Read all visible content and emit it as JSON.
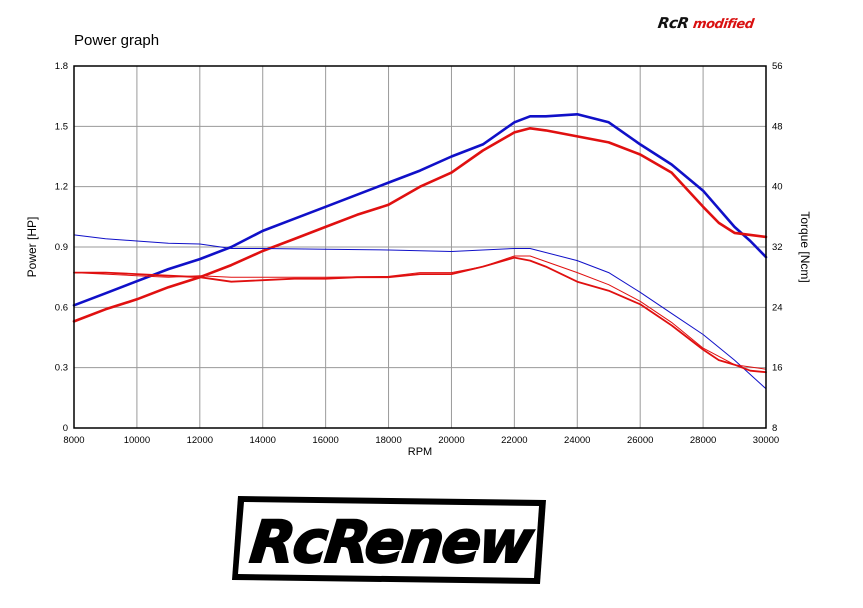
{
  "chart_data": {
    "type": "line",
    "title": "Power graph",
    "xlabel": "RPM",
    "ylabel_left": "Power [HP]",
    "ylabel_right": "Torque [Ncm]",
    "xlim": [
      8000,
      30000
    ],
    "ylim_left": [
      0,
      1.8
    ],
    "ylim_right": [
      8,
      56
    ],
    "x_ticks": [
      8000,
      10000,
      12000,
      14000,
      16000,
      18000,
      20000,
      22000,
      24000,
      26000,
      28000,
      30000
    ],
    "y_left_ticks": [
      0,
      0.3,
      0.6,
      0.9,
      1.2,
      1.5,
      1.8
    ],
    "y_left_tick_labels": [
      "0",
      "0.3",
      "0.6",
      "0.9",
      "1.2",
      "1.5",
      "1.8"
    ],
    "y_right_ticks": [
      8,
      16,
      24,
      32,
      40,
      48,
      56
    ],
    "grid": true,
    "series": [
      {
        "axis": "left",
        "color": "#1010c8",
        "stroke": "thick",
        "x": [
          8000,
          9000,
          10000,
          11000,
          12000,
          13000,
          14000,
          15000,
          16000,
          17000,
          18000,
          19000,
          20000,
          21000,
          22000,
          22500,
          23000,
          24000,
          25000,
          26000,
          27000,
          28000,
          29000,
          29500,
          30000
        ],
        "y": [
          0.61,
          0.67,
          0.73,
          0.79,
          0.84,
          0.9,
          0.98,
          1.04,
          1.1,
          1.16,
          1.22,
          1.28,
          1.35,
          1.41,
          1.52,
          1.55,
          1.55,
          1.56,
          1.52,
          1.41,
          1.31,
          1.18,
          1.0,
          0.93,
          0.85
        ]
      },
      {
        "axis": "left",
        "color": "#e01010",
        "stroke": "thick",
        "x": [
          8000,
          9000,
          10000,
          11000,
          12000,
          13000,
          14000,
          15000,
          16000,
          17000,
          18000,
          19000,
          20000,
          21000,
          22000,
          22500,
          23000,
          24000,
          25000,
          26000,
          27000,
          28000,
          28500,
          29000,
          29500,
          30000
        ],
        "y": [
          0.53,
          0.59,
          0.64,
          0.7,
          0.75,
          0.81,
          0.88,
          0.94,
          1.0,
          1.06,
          1.11,
          1.2,
          1.27,
          1.38,
          1.47,
          1.49,
          1.48,
          1.45,
          1.42,
          1.36,
          1.27,
          1.1,
          1.02,
          0.97,
          0.96,
          0.95
        ]
      },
      {
        "axis": "right",
        "color": "#1010c8",
        "stroke": "thin",
        "x": [
          8000,
          9000,
          10000,
          11000,
          12000,
          13000,
          14000,
          16000,
          18000,
          20000,
          22000,
          22500,
          24000,
          25000,
          26000,
          27000,
          28000,
          29000,
          30000
        ],
        "y": [
          33.6,
          33.1,
          32.8,
          32.5,
          32.4,
          31.8,
          31.8,
          31.7,
          31.6,
          31.4,
          31.8,
          31.8,
          30.2,
          28.6,
          26.0,
          23.2,
          20.4,
          17.0,
          13.2
        ]
      },
      {
        "axis": "right",
        "color": "#e01010",
        "stroke": "thin",
        "x": [
          8000,
          9000,
          10000,
          11000,
          12000,
          13000,
          14000,
          16000,
          18000,
          19000,
          20000,
          21000,
          22000,
          22500,
          24000,
          25000,
          26000,
          27000,
          28000,
          29000,
          30000
        ],
        "y": [
          28.6,
          28.4,
          28.2,
          28.0,
          28.2,
          28.0,
          28.0,
          28.0,
          28.1,
          28.6,
          28.6,
          29.4,
          30.8,
          30.8,
          28.6,
          27.0,
          24.8,
          22.0,
          18.6,
          16.4,
          15.8
        ]
      },
      {
        "axis": "right",
        "color": "#e01010",
        "stroke": "medium",
        "x": [
          8000,
          9000,
          10000,
          11000,
          12000,
          13000,
          14000,
          15000,
          16000,
          17000,
          18000,
          19000,
          20000,
          21000,
          22000,
          22500,
          23000,
          24000,
          25000,
          26000,
          27000,
          28000,
          28500,
          29000,
          29500,
          30000
        ],
        "y": [
          28.6,
          28.6,
          28.4,
          28.2,
          28.0,
          27.4,
          27.6,
          27.8,
          27.8,
          28.0,
          28.0,
          28.4,
          28.4,
          29.4,
          30.6,
          30.2,
          29.4,
          27.4,
          26.2,
          24.4,
          21.6,
          18.4,
          17.0,
          16.4,
          15.6,
          15.4
        ]
      }
    ]
  },
  "brand": {
    "top_logo_main": "RcR",
    "top_logo_sub": "modified",
    "footer_logo": "RcRenew"
  }
}
